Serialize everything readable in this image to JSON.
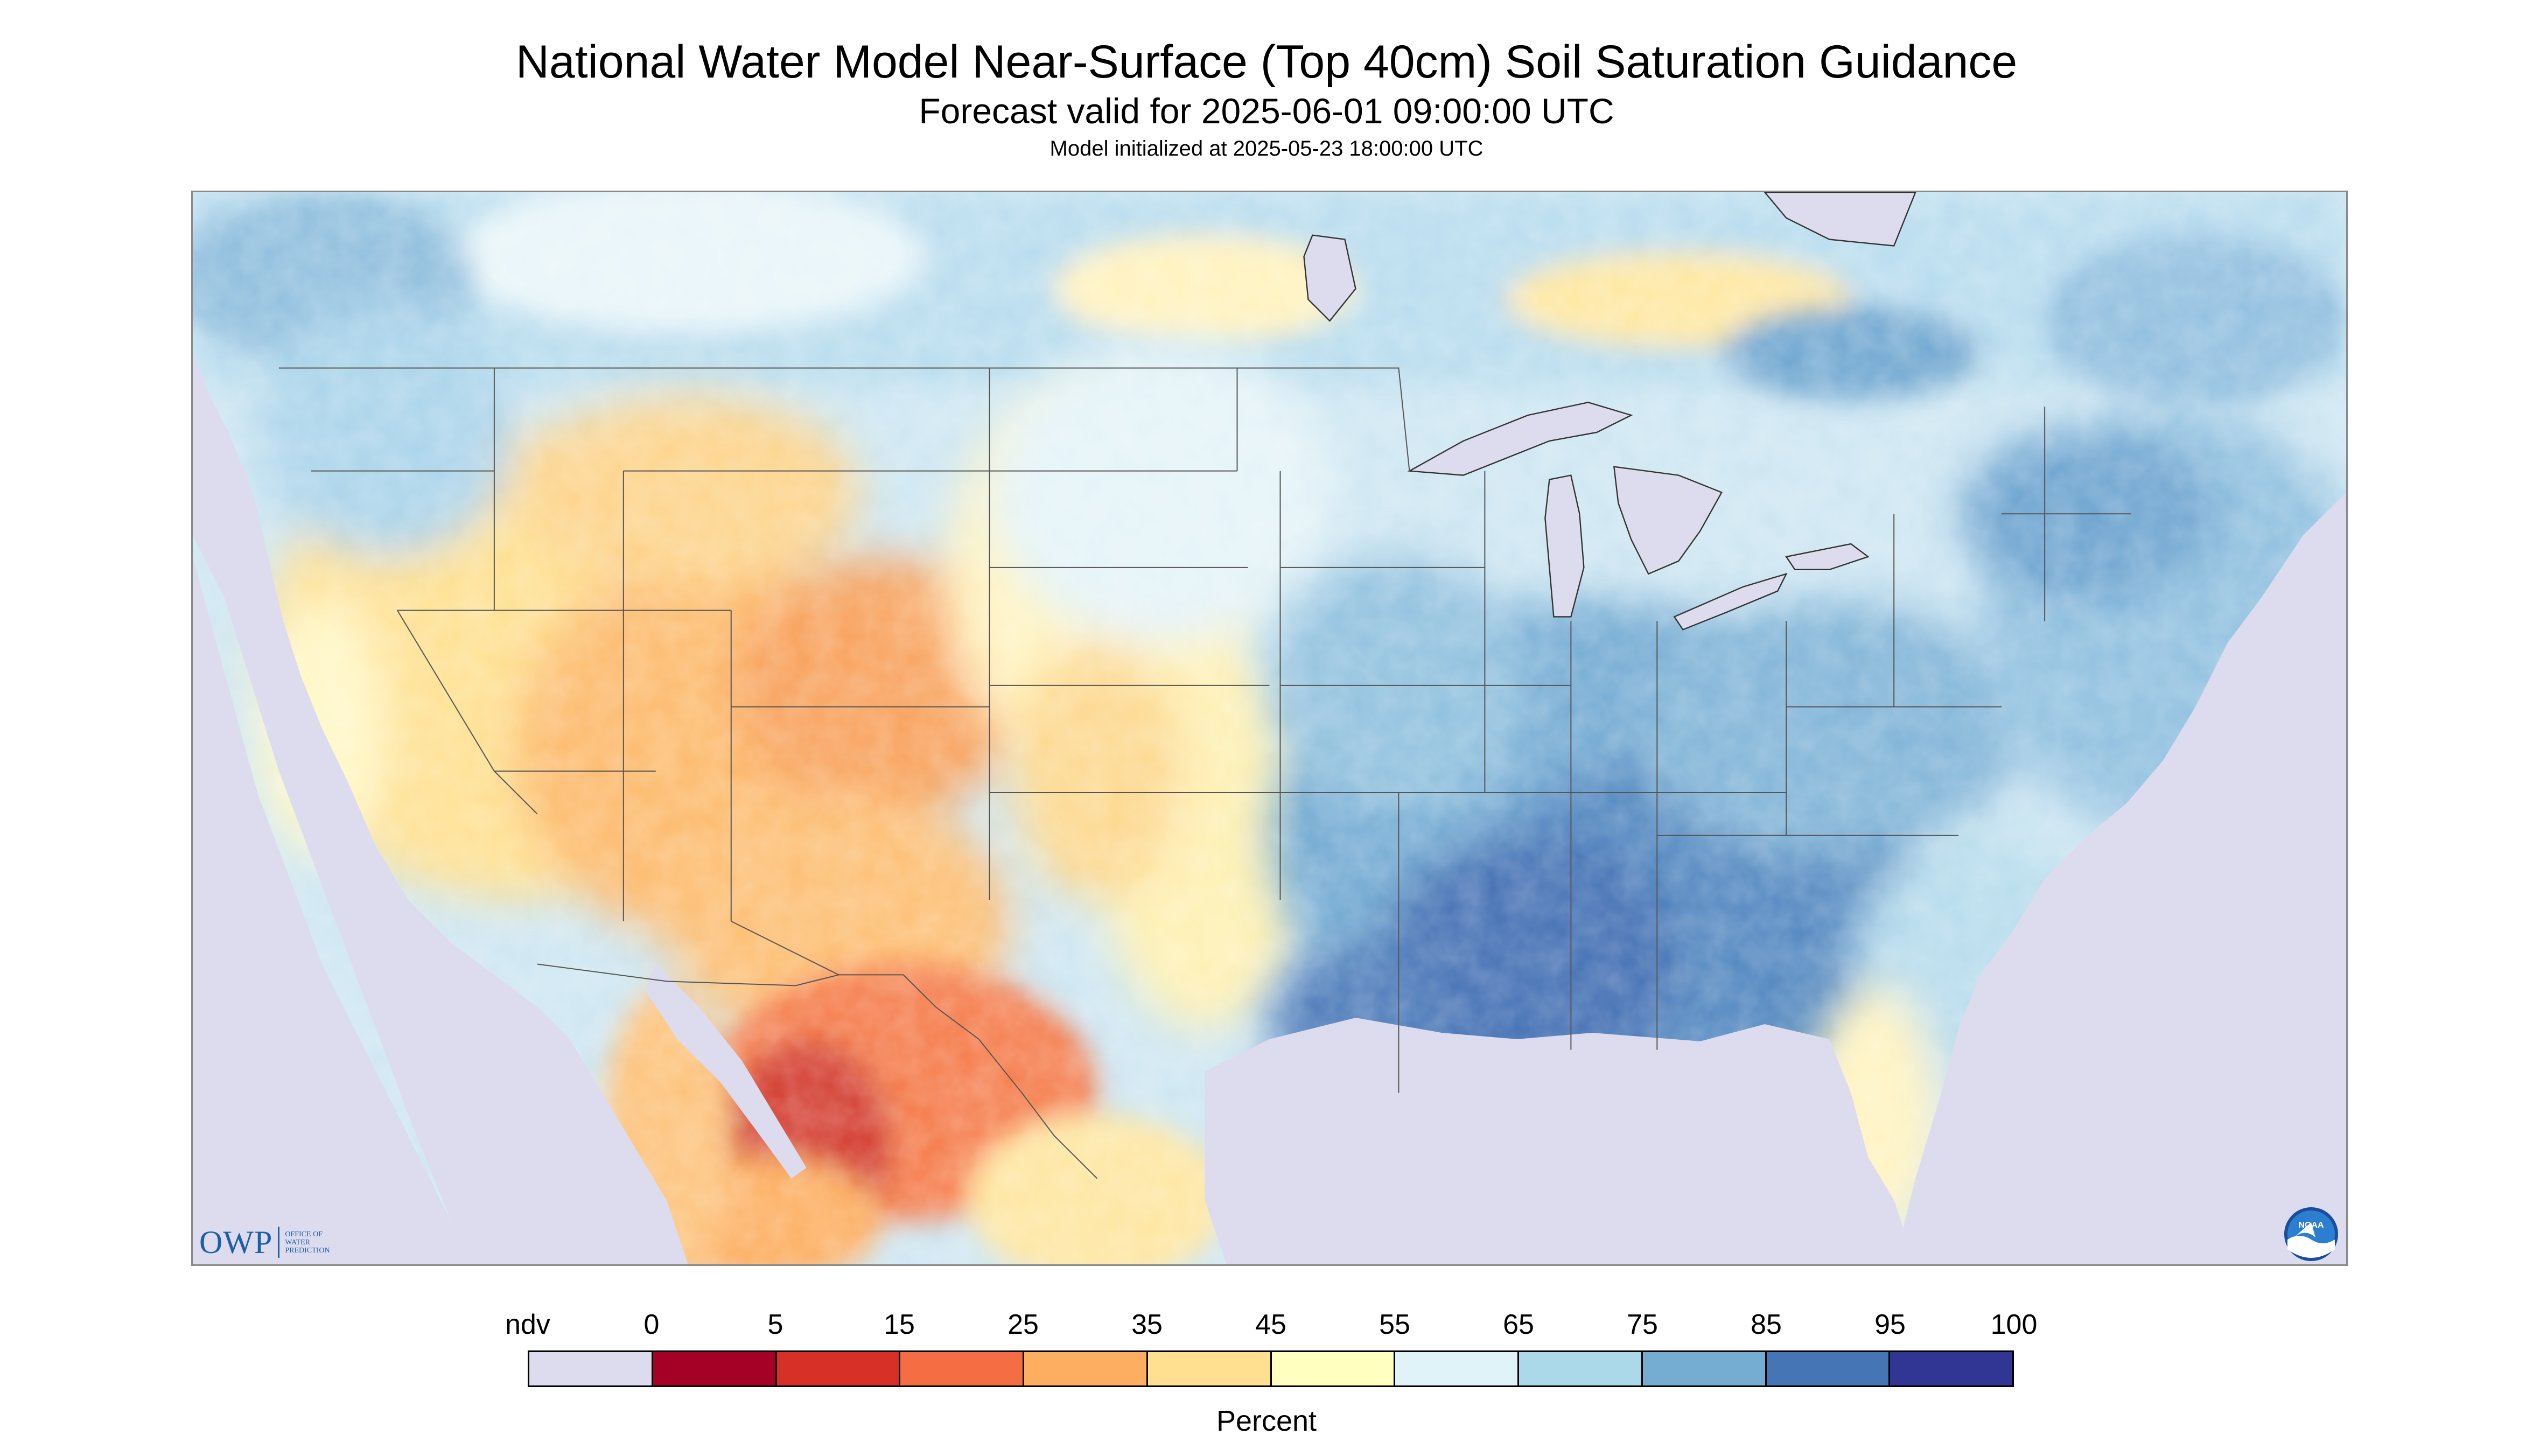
{
  "header": {
    "title": "National Water Model Near-Surface (Top 40cm) Soil Saturation Guidance",
    "subtitle": "Forecast valid for 2025-06-01 09:00:00 UTC",
    "init": "Model initialized at 2025-05-23 18:00:00 UTC"
  },
  "legend": {
    "labels": [
      "ndv",
      "0",
      "5",
      "15",
      "25",
      "35",
      "45",
      "55",
      "65",
      "75",
      "85",
      "95",
      "100"
    ],
    "colors": [
      "#dcdcee",
      "#a50026",
      "#d73027",
      "#f46d43",
      "#fdae61",
      "#fee090",
      "#ffffbf",
      "#e0f3f8",
      "#abd9e9",
      "#74add1",
      "#4575b4",
      "#313695"
    ],
    "unit": "Percent"
  },
  "logos": {
    "owp": "OWP",
    "owp_sub": [
      "OFFICE OF",
      "WATER",
      "PREDICTION"
    ],
    "noaa": "NOAA"
  },
  "map": {
    "colors": {
      "ndv": "#dcdcee",
      "water": "#dcdcee",
      "border": "#555555"
    },
    "regions": [
      {
        "name": "west-dry",
        "level": 35
      },
      {
        "name": "southwest-mexico",
        "level": 5
      },
      {
        "name": "great-plains",
        "level": 55
      },
      {
        "name": "midwest-south",
        "level": 85
      },
      {
        "name": "northeast",
        "level": 75
      },
      {
        "name": "canada",
        "level": 65
      }
    ]
  }
}
